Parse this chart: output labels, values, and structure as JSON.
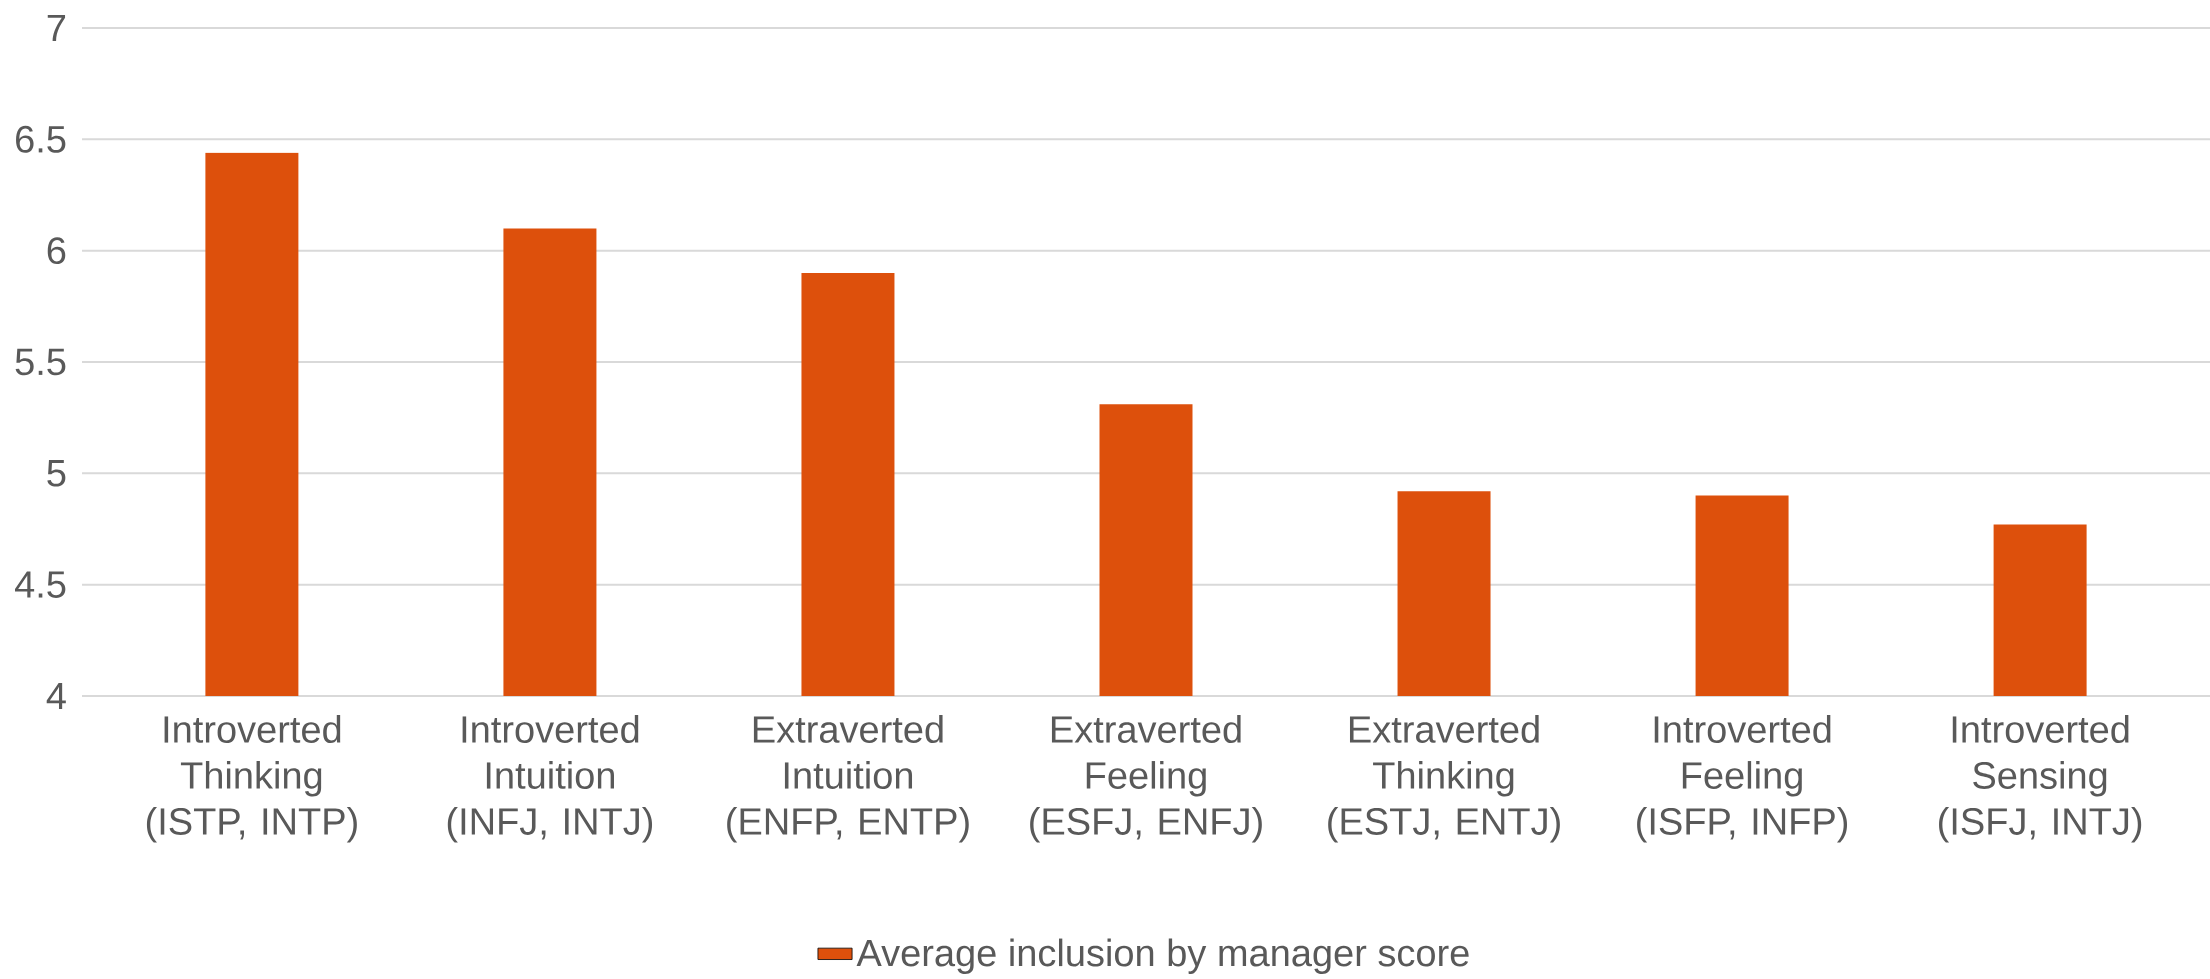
{
  "chart_data": {
    "type": "bar",
    "categories": [
      "Introverted Thinking (ISTP, INTP)",
      "Introverted Intuition (INFJ, INTJ)",
      "Extraverted Intuition (ENFP, ENTP)",
      "Extraverted Feeling (ESFJ, ENFJ)",
      "Extraverted Thinking (ESTJ, ENTJ)",
      "Introverted Feeling (ISFP, INFP)",
      "Introverted Sensing (ISFJ, INTJ)"
    ],
    "series": [
      {
        "name": "Average inclusion by manager score",
        "color": "#dd500c",
        "values": [
          6.44,
          6.1,
          5.9,
          5.31,
          4.92,
          4.9,
          4.77
        ]
      }
    ],
    "ylim": [
      4,
      7
    ],
    "yticks": [
      4,
      4.5,
      5,
      5.5,
      6,
      6.5,
      7
    ],
    "grid": "y",
    "legend": "bottom"
  }
}
